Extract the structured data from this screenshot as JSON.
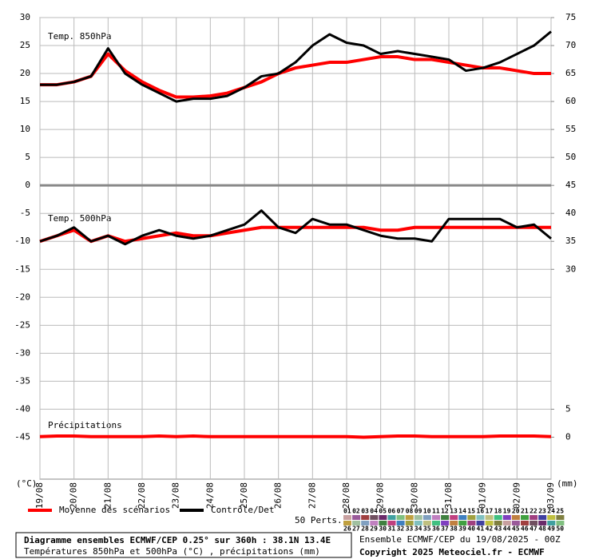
{
  "chart_data": {
    "type": "line",
    "panel_labels": [
      "Temp. 850hPa",
      "Temp. 500hPa",
      "Précipitations"
    ],
    "y_unit_left": "(°C)",
    "y_unit_right": "(mm)",
    "x": [
      0,
      0.5,
      1,
      1.5,
      2,
      2.5,
      3,
      3.5,
      4,
      4.5,
      5,
      5.5,
      6,
      6.5,
      7,
      7.5,
      8,
      8.5,
      9,
      9.5,
      10,
      10.5,
      11,
      11.5,
      12,
      12.5,
      13,
      13.5,
      14,
      14.5,
      15
    ],
    "xlim": [
      0,
      15
    ],
    "xticks": [
      {
        "value": 0,
        "label": "19/08"
      },
      {
        "value": 1,
        "label": "20/08"
      },
      {
        "value": 2,
        "label": "21/08"
      },
      {
        "value": 3,
        "label": "22/08"
      },
      {
        "value": 4,
        "label": "23/08"
      },
      {
        "value": 5,
        "label": "24/08"
      },
      {
        "value": 6,
        "label": "25/08"
      },
      {
        "value": 7,
        "label": "26/08"
      },
      {
        "value": 8,
        "label": "27/08"
      },
      {
        "value": 9,
        "label": "28/08"
      },
      {
        "value": 10,
        "label": "29/08"
      },
      {
        "value": 11,
        "label": "30/08"
      },
      {
        "value": 12,
        "label": "31/08"
      },
      {
        "value": 13,
        "label": "01/09"
      },
      {
        "value": 14,
        "label": "02/09"
      },
      {
        "value": 15,
        "label": "03/09"
      }
    ],
    "ylim": [
      -52.5,
      30
    ],
    "yticks": [
      30,
      25,
      20,
      15,
      10,
      5,
      0,
      -5,
      -10,
      -15,
      -20,
      -25,
      -30,
      -35,
      -40,
      -45
    ],
    "y2lim": [
      -7.5,
      75
    ],
    "y2ticks": [
      75,
      70,
      65,
      60,
      55,
      50,
      45,
      40,
      35,
      30,
      5,
      0
    ],
    "grid": true,
    "legend": [
      {
        "label": "Moyenne des scénarios",
        "color": "#ff0000"
      },
      {
        "label": "Contrôle/Det",
        "color": "#000000"
      }
    ],
    "perturbations_label": "50 Perts.",
    "perturbation_ids": [
      "01",
      "02",
      "03",
      "04",
      "05",
      "06",
      "07",
      "08",
      "09",
      "10",
      "11",
      "12",
      "13",
      "14",
      "15",
      "16",
      "17",
      "18",
      "19",
      "20",
      "21",
      "22",
      "23",
      "24",
      "25",
      "26",
      "27",
      "28",
      "29",
      "30",
      "31",
      "32",
      "33",
      "34",
      "35",
      "36",
      "37",
      "38",
      "39",
      "40",
      "41",
      "42",
      "43",
      "44",
      "45",
      "46",
      "47",
      "48",
      "49",
      "50"
    ],
    "series": [
      {
        "color": "#ff0000",
        "width": 4,
        "values": [
          18,
          18,
          18.5,
          19.5,
          23.5,
          20.5,
          18.5,
          17,
          15.8,
          15.8,
          16,
          16.5,
          17.5,
          18.5,
          20,
          21,
          21.5,
          22,
          22,
          22.5,
          23,
          23,
          22.5,
          22.5,
          22,
          21.5,
          21,
          21,
          20.5,
          20,
          20
        ]
      },
      {
        "color": "#000000",
        "width": 3,
        "values": [
          18,
          18,
          18.5,
          19.5,
          24.5,
          20,
          18,
          16.5,
          15,
          15.5,
          15.5,
          16,
          17.5,
          19.5,
          20,
          22,
          25,
          27,
          25.5,
          25,
          23.5,
          24,
          23.5,
          23,
          22.5,
          20.5,
          21,
          22,
          23.5,
          25,
          27.5
        ]
      },
      {
        "color": "#ff0000",
        "width": 4,
        "values": [
          -10,
          -9,
          -8,
          -10,
          -9,
          -10,
          -9.5,
          -9,
          -8.5,
          -9,
          -9,
          -8.5,
          -8,
          -7.5,
          -7.5,
          -7.5,
          -7.5,
          -7.5,
          -7.5,
          -7.5,
          -8,
          -8,
          -7.5,
          -7.5,
          -7.5,
          -7.5,
          -7.5,
          -7.5,
          -7.5,
          -7.5,
          -7.5
        ]
      },
      {
        "color": "#000000",
        "width": 3,
        "values": [
          -10,
          -9,
          -7.5,
          -10,
          -9,
          -10.5,
          -9,
          -8,
          -9,
          -9.5,
          -9,
          -8,
          -7,
          -4.5,
          -7.5,
          -8.5,
          -6,
          -7,
          -7,
          -8,
          -9,
          -9.5,
          -9.5,
          -10,
          -6,
          -6,
          -6,
          -6,
          -7.5,
          -7,
          -9.5
        ]
      },
      {
        "color": "#ff0000",
        "width": 4,
        "axis": "y2",
        "values": [
          0.1,
          0.2,
          0.2,
          0.1,
          0.1,
          0.1,
          0.1,
          0.2,
          0.1,
          0.2,
          0.1,
          0.1,
          0.1,
          0.1,
          0.1,
          0.1,
          0.1,
          0.1,
          0.1,
          0,
          0.1,
          0.2,
          0.2,
          0.1,
          0.1,
          0.1,
          0.1,
          0.2,
          0.2,
          0.2,
          0.1
        ]
      }
    ],
    "footer": {
      "title": "Diagramme ensembles ECMWF/CEP 0.25° sur 360h : 38.1N 13.4E",
      "subtitle": "Températures 850hPa et 500hPa (°C) , précipitations (mm)",
      "run": "Ensemble ECMWF/CEP du 19/08/2025 - 00Z",
      "copyright": "Copyright 2025 Meteociel.fr - ECMWF"
    }
  }
}
